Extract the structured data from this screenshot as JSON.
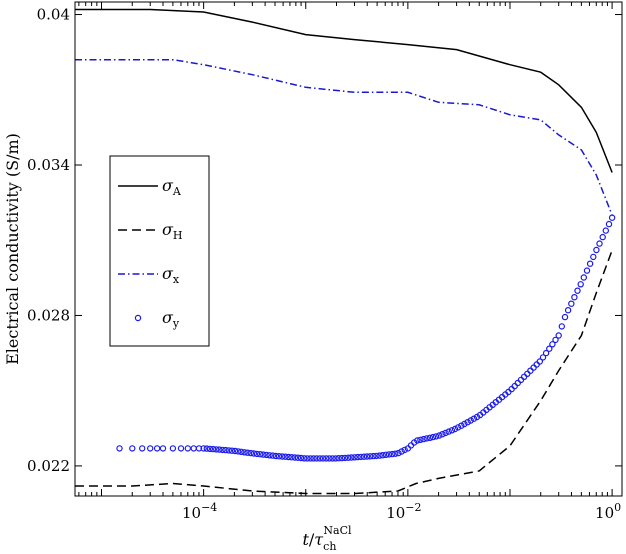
{
  "chart_data": {
    "type": "line",
    "title": "",
    "xlabel": "t/τ_ch^NaCl",
    "ylabel": "Electrical conductivity (S/m)",
    "xscale": "log",
    "xlim": [
      5.5e-06,
      1.25
    ],
    "ylim": [
      0.0208,
      0.0405
    ],
    "yticks": [
      0.022,
      0.028,
      0.034,
      0.04
    ],
    "ytick_labels": [
      "0.022",
      "0.028",
      "0.034",
      "0.04"
    ],
    "xticks": [
      0.0001,
      0.01,
      1
    ],
    "xtick_labels": [
      {
        "base": "10",
        "exp": "−4"
      },
      {
        "base": "10",
        "exp": "−2"
      },
      {
        "base": "10",
        "exp": "0"
      }
    ],
    "legend_position": "left-middle",
    "grid": false,
    "series": [
      {
        "name": "σ_A",
        "legend_symbol": "σ",
        "legend_sub": "A",
        "style": "solid",
        "color": "#000000",
        "x": [
          5.5e-06,
          1e-05,
          3e-05,
          0.0001,
          0.0003,
          0.001,
          0.003,
          0.01,
          0.03,
          0.1,
          0.2,
          0.3,
          0.5,
          0.7,
          1.0
        ],
        "y": [
          0.0402,
          0.0402,
          0.0402,
          0.0401,
          0.0397,
          0.0392,
          0.039,
          0.0388,
          0.0386,
          0.038,
          0.0377,
          0.0372,
          0.0363,
          0.0353,
          0.0337
        ]
      },
      {
        "name": "σ_H",
        "legend_symbol": "σ",
        "legend_sub": "H",
        "style": "dashed",
        "color": "#000000",
        "x": [
          5.5e-06,
          2e-05,
          5e-05,
          0.0001,
          0.0003,
          0.001,
          0.003,
          0.008,
          0.012,
          0.02,
          0.05,
          0.1,
          0.2,
          0.3,
          0.5,
          0.7,
          1.0
        ],
        "y": [
          0.0212,
          0.0212,
          0.0213,
          0.0212,
          0.021,
          0.0209,
          0.0209,
          0.021,
          0.0213,
          0.0215,
          0.0218,
          0.0228,
          0.0246,
          0.0258,
          0.0272,
          0.0289,
          0.0306
        ]
      },
      {
        "name": "σ_x",
        "legend_symbol": "σ",
        "legend_sub": "x",
        "style": "dashdot",
        "color": "#1a1acc",
        "x": [
          5.5e-06,
          2e-05,
          5e-05,
          0.0001,
          0.0003,
          0.001,
          0.003,
          0.01,
          0.02,
          0.05,
          0.1,
          0.2,
          0.3,
          0.5,
          0.7,
          1.0
        ],
        "y": [
          0.0382,
          0.0382,
          0.0382,
          0.038,
          0.0376,
          0.0371,
          0.0369,
          0.0369,
          0.0365,
          0.0364,
          0.036,
          0.0358,
          0.0352,
          0.0346,
          0.0336,
          0.032
        ]
      },
      {
        "name": "σ_y",
        "legend_symbol": "σ",
        "legend_sub": "y",
        "style": "markers",
        "color": "#1a1aee",
        "x": [
          1.5e-05,
          2e-05,
          2.5e-05,
          3e-05,
          3.5e-05,
          4e-05,
          5e-05,
          6e-05,
          7e-05,
          8e-05,
          9e-05,
          0.0001,
          0.0002,
          0.0003,
          0.0005,
          0.001,
          0.002,
          0.005,
          0.008,
          0.01,
          0.012,
          0.02,
          0.03,
          0.05,
          0.1,
          0.2,
          0.3,
          0.35,
          0.5,
          0.7,
          1.0
        ],
        "y": [
          0.0227,
          0.0227,
          0.0227,
          0.0227,
          0.0227,
          0.0227,
          0.0227,
          0.0227,
          0.0227,
          0.0227,
          0.0227,
          0.0227,
          0.0226,
          0.0225,
          0.0224,
          0.0223,
          0.0223,
          0.0224,
          0.0225,
          0.0227,
          0.023,
          0.0232,
          0.0235,
          0.024,
          0.025,
          0.0262,
          0.0272,
          0.028,
          0.0293,
          0.0306,
          0.0319
        ]
      }
    ]
  }
}
